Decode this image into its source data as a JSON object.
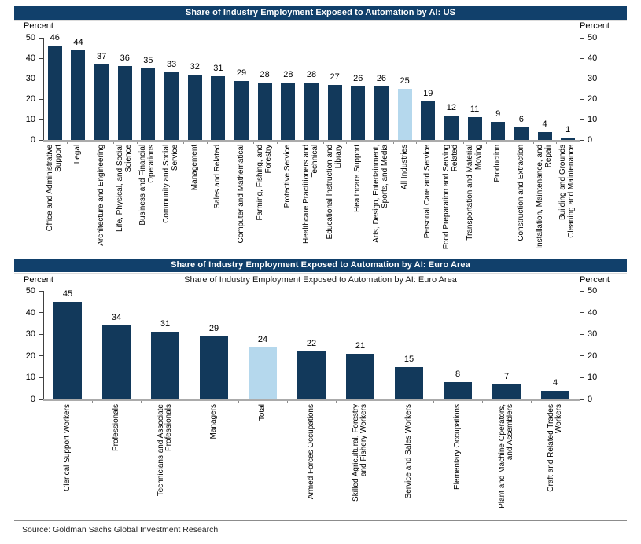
{
  "chart_data": [
    {
      "type": "bar",
      "title": "Share of Industry Employment Exposed to Automation by AI: US",
      "subtitle": "",
      "unit_label_left": "Percent",
      "unit_label_right": "Percent",
      "ylim": [
        0,
        50
      ],
      "ytick_step": 10,
      "grid": false,
      "legend": "none",
      "bar_color": "#12395b",
      "highlight_color": "#b5d8ed",
      "highlight_category": "All Industries",
      "categories": [
        "Office and Administrative Support",
        "Legal",
        "Architecture and Engineering",
        "Life, Physical, and Social Science",
        "Business and Financial Operations",
        "Community and Social Service",
        "Management",
        "Sales and Related",
        "Computer and Mathematical",
        "Farming, Fishing, and Forestry",
        "Protective Service",
        "Healthcare Practitioners and Technical",
        "Educational Instruction and Library",
        "Healthcare Support",
        "Arts, Design, Entertainment, Sports, and Media",
        "All Industries",
        "Personal Care and Service",
        "Food Preparation and Serving Related",
        "Transportation and Material Moving",
        "Production",
        "Construction and Extraction",
        "Installation, Maintenance, and Repair",
        "Building and Grounds Cleaning and Maintenance"
      ],
      "values": [
        46,
        44,
        37,
        36,
        35,
        33,
        32,
        31,
        29,
        28,
        28,
        28,
        27,
        26,
        26,
        25,
        19,
        12,
        11,
        9,
        6,
        4,
        1
      ]
    },
    {
      "type": "bar",
      "title": "Share of Industry Employment Exposed to Automation by AI: Euro Area",
      "subtitle": "Share of Industry Employment Exposed to Automation by AI: Euro Area",
      "unit_label_left": "Percent",
      "unit_label_right": "Percent",
      "ylim": [
        0,
        50
      ],
      "ytick_step": 10,
      "grid": false,
      "legend": "none",
      "bar_color": "#12395b",
      "highlight_color": "#b5d8ed",
      "highlight_category": "Total",
      "categories": [
        "Clerical Support Workers",
        "Professionals",
        "Technicians and Associate Professionals",
        "Managers",
        "Total",
        "Armed Forces Occupations",
        "Skilled Agricultural, Forestry and Fishery Workers",
        "Service and Sales Workers",
        "Elementary Occupations",
        "Plant and Machine Operators, and Assemblers",
        "Craft and Related Trades Workers"
      ],
      "values": [
        45,
        34,
        31,
        29,
        24,
        22,
        21,
        15,
        8,
        7,
        4
      ]
    }
  ],
  "footer": {
    "source": "Source: Goldman Sachs Global Investment Research"
  },
  "colors": {
    "header_bg": "#11406b",
    "bar_navy": "#12395b",
    "bar_highlight": "#b5d8ed",
    "axis_line": "#404040",
    "baseline": "#ababab"
  }
}
